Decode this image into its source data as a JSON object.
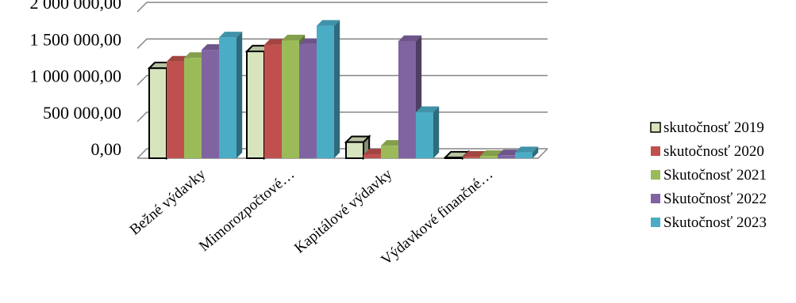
{
  "chart_data": {
    "type": "bar",
    "title": "",
    "xlabel": "",
    "ylabel": "",
    "categories": [
      "Bežné výdavky",
      "Mimorozpočtové…",
      "Kapitálové výdavky",
      "Výdavkové finančné…"
    ],
    "series": [
      {
        "name": "skutočnosť 2019",
        "color": "#D7E4BD",
        "outline": true,
        "values": [
          1230000,
          1460000,
          220000,
          10000
        ]
      },
      {
        "name": "skutočnosť 2020",
        "color": "#C0504D",
        "values": [
          1320000,
          1550000,
          50000,
          20000
        ]
      },
      {
        "name": "Skutočnosť 2021",
        "color": "#9BBB59",
        "values": [
          1370000,
          1610000,
          170000,
          30000
        ]
      },
      {
        "name": "Skutočnosť 2022",
        "color": "#8064A2",
        "values": [
          1480000,
          1560000,
          1600000,
          40000
        ]
      },
      {
        "name": "Skutočnosť 2023",
        "color": "#4BACC6",
        "values": [
          1650000,
          1810000,
          630000,
          80000
        ]
      }
    ],
    "ylim": [
      0,
      2000000
    ],
    "yticks": [
      0,
      500000,
      1000000,
      1500000,
      2000000
    ],
    "ytick_labels": [
      "0,00",
      "500 000,00",
      "1 000 000,00",
      "1 500 000,00",
      "2 000 000,00"
    ],
    "grid": true,
    "legend_position": "right",
    "style": "3d-clustered-column"
  }
}
